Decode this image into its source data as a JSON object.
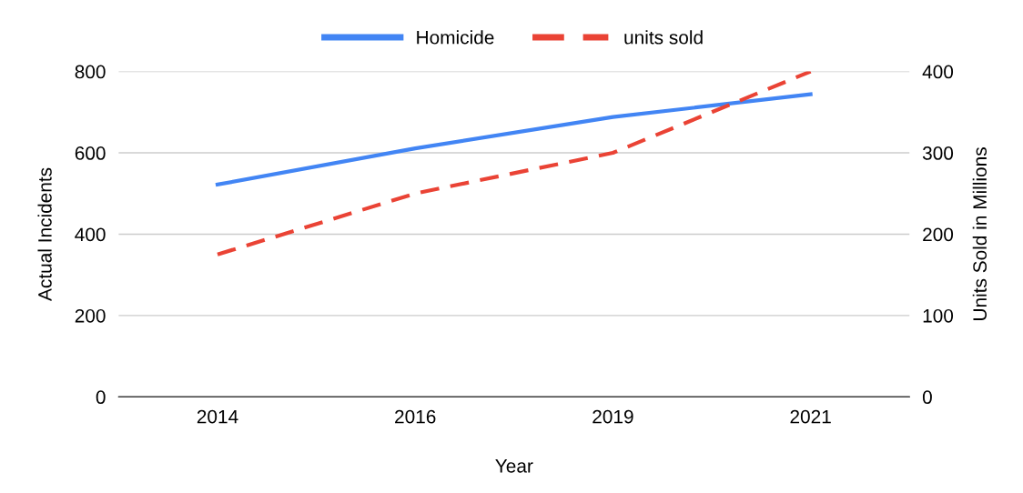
{
  "chart_data": {
    "type": "line",
    "xlabel": "Year",
    "ylabel": "Actual Incidents",
    "y2label": "Units Sold in Millions",
    "categories": [
      "2014",
      "2016",
      "2019",
      "2021"
    ],
    "series": [
      {
        "name": "Homicide",
        "color": "#4285f4",
        "values": [
          522,
          611,
          688,
          744
        ],
        "line_style": "solid"
      },
      {
        "name": "units sold",
        "color": "#ea4335",
        "values": [
          175,
          250,
          300,
          400
        ],
        "axis": "y2",
        "line_style": "dashed"
      }
    ],
    "ylim": [
      0,
      800
    ],
    "yticks": [
      0,
      200,
      400,
      600,
      800
    ],
    "y2lim": [
      0,
      400
    ],
    "y2ticks": [
      0,
      100,
      200,
      300,
      400
    ],
    "grid": "y",
    "legend": "top",
    "marker": "none"
  }
}
